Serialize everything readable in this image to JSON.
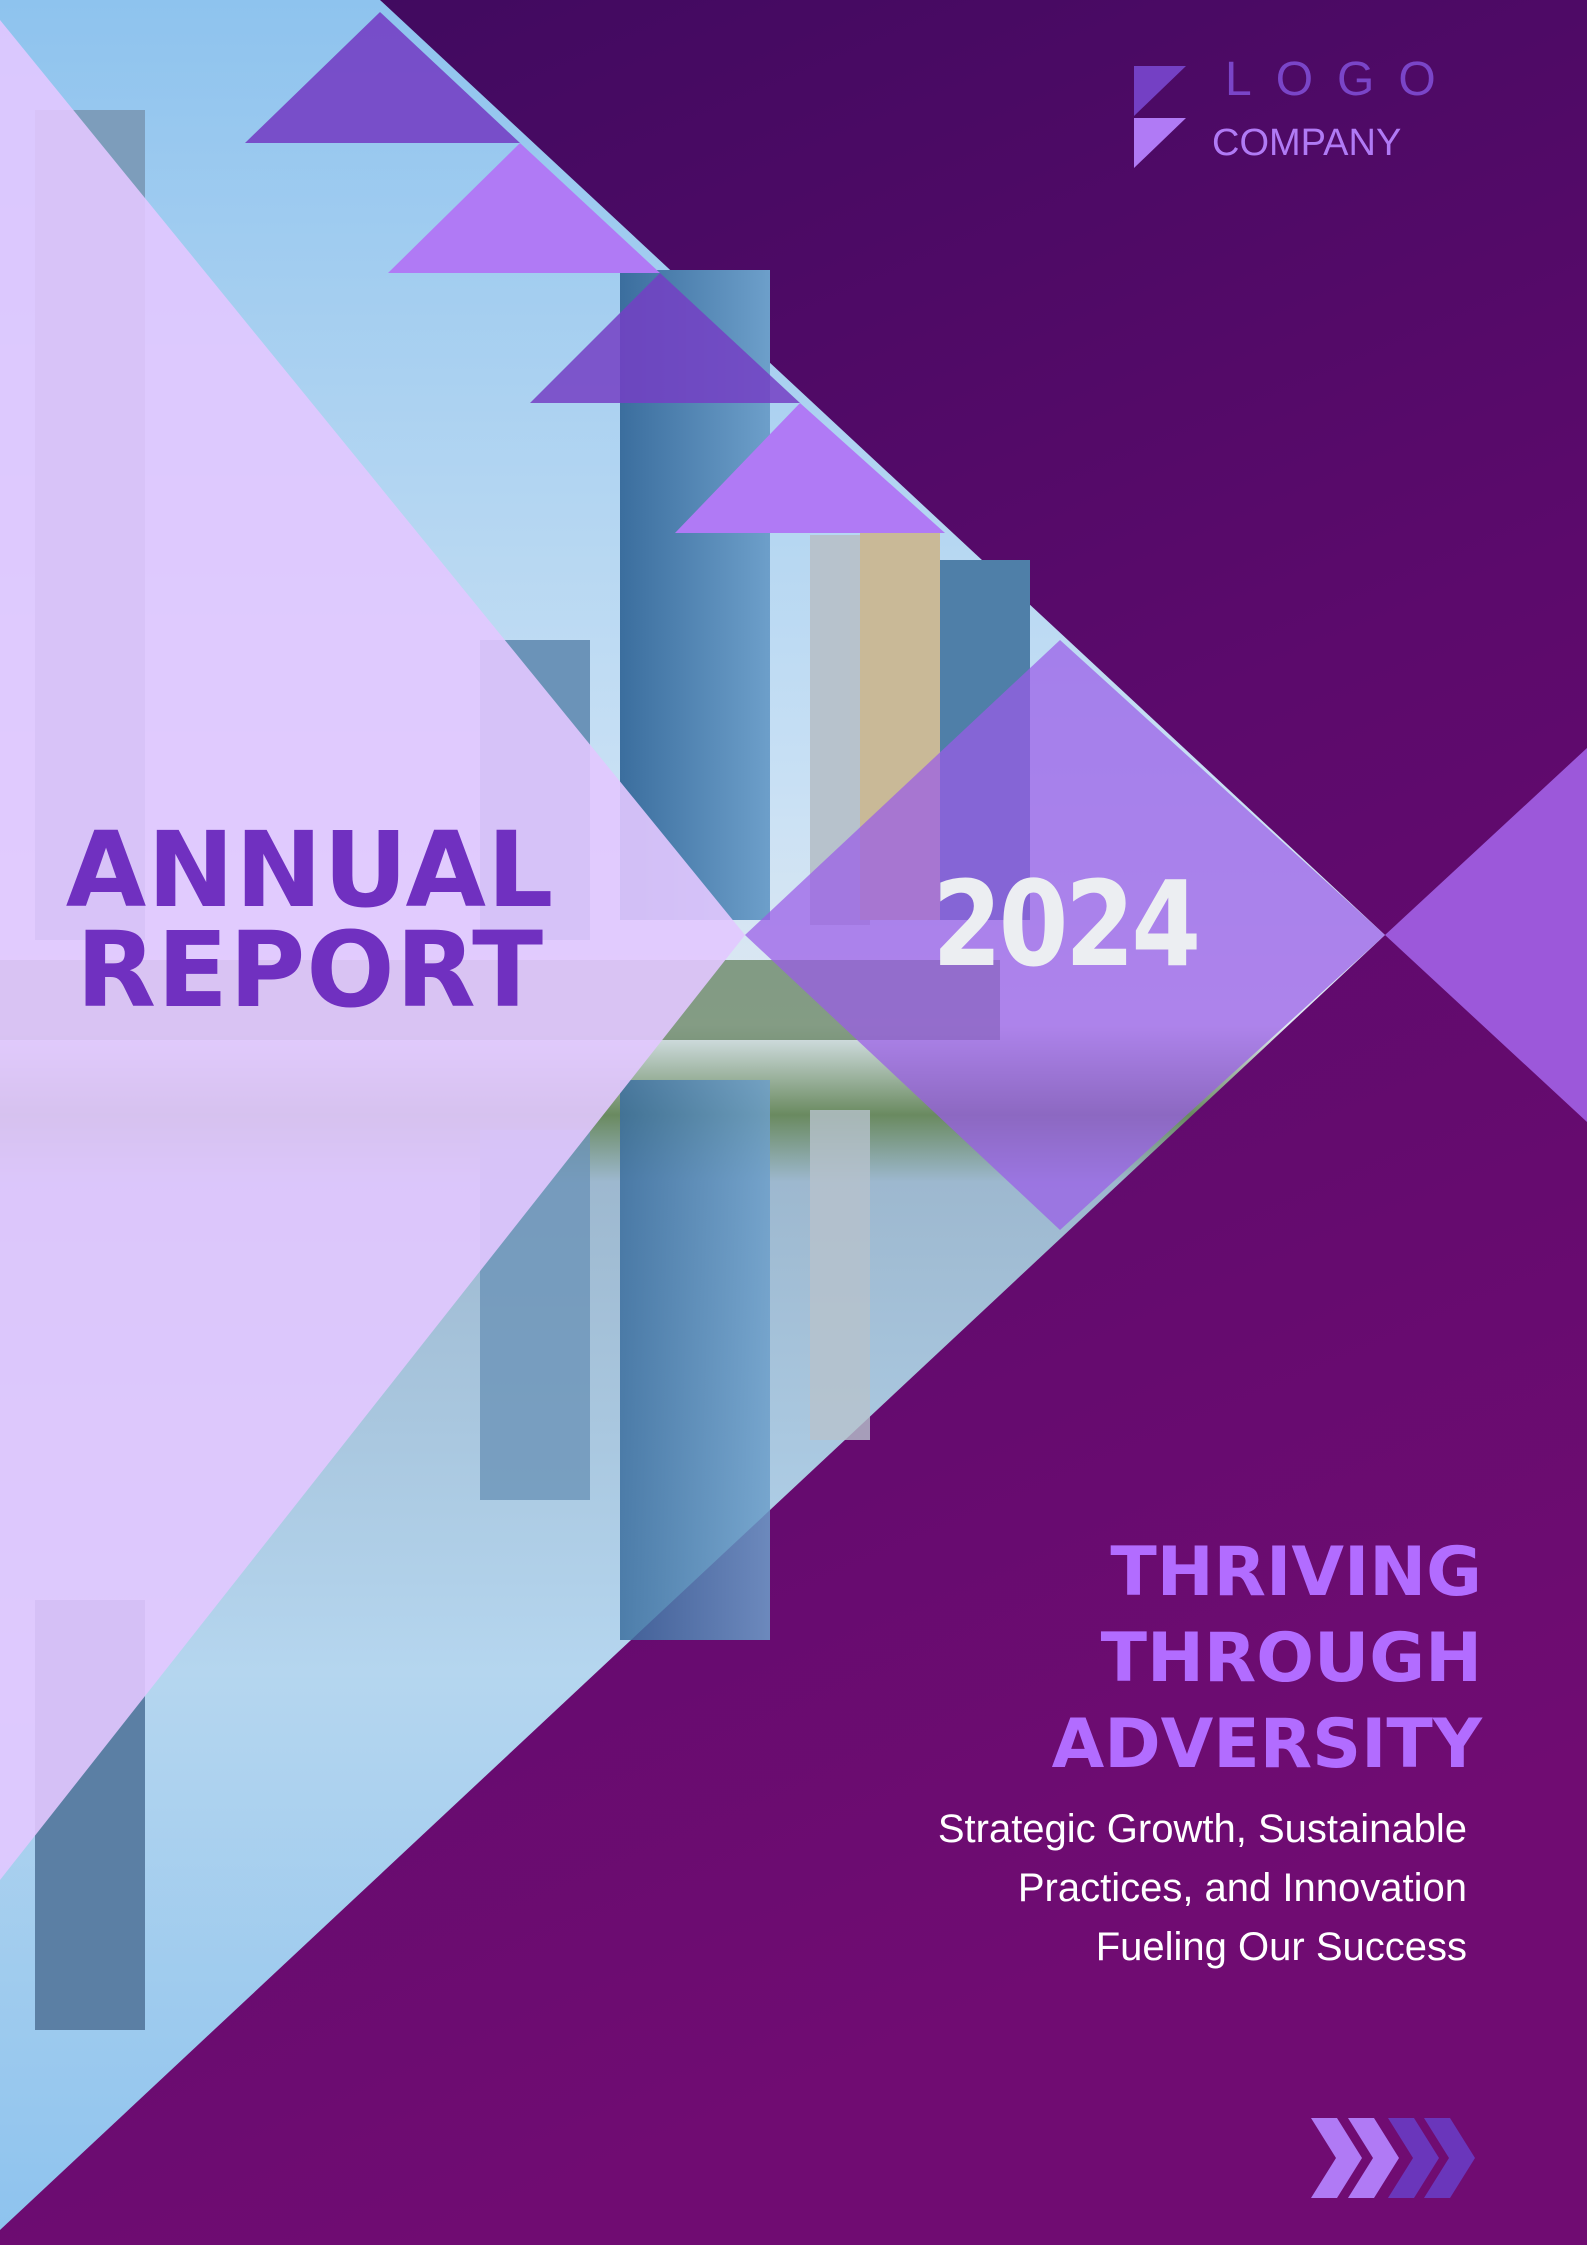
{
  "logo": {
    "word": "LOGO",
    "company": "COMPANY"
  },
  "cover": {
    "title_line1": "ANNUAL",
    "title_line2": "REPORT",
    "year": "2024",
    "headline": [
      "THRIVING",
      "THROUGH",
      "ADVERSITY"
    ],
    "subtitle": [
      "Strategic Growth, Sustainable",
      "Practices, and Innovation",
      "Fueling Our Success"
    ]
  },
  "colors": {
    "dark_purple_top": "#3d0a5e",
    "dark_purple_bottom": "#700c72",
    "accent_light": "#b07af5",
    "accent_mid": "#7440c4",
    "lavender_overlay": "#e4ccff",
    "headline": "#b26cff"
  },
  "icons": {
    "arrows": "chevron-right-icon",
    "logo_mark": "logo-mark-icon"
  }
}
